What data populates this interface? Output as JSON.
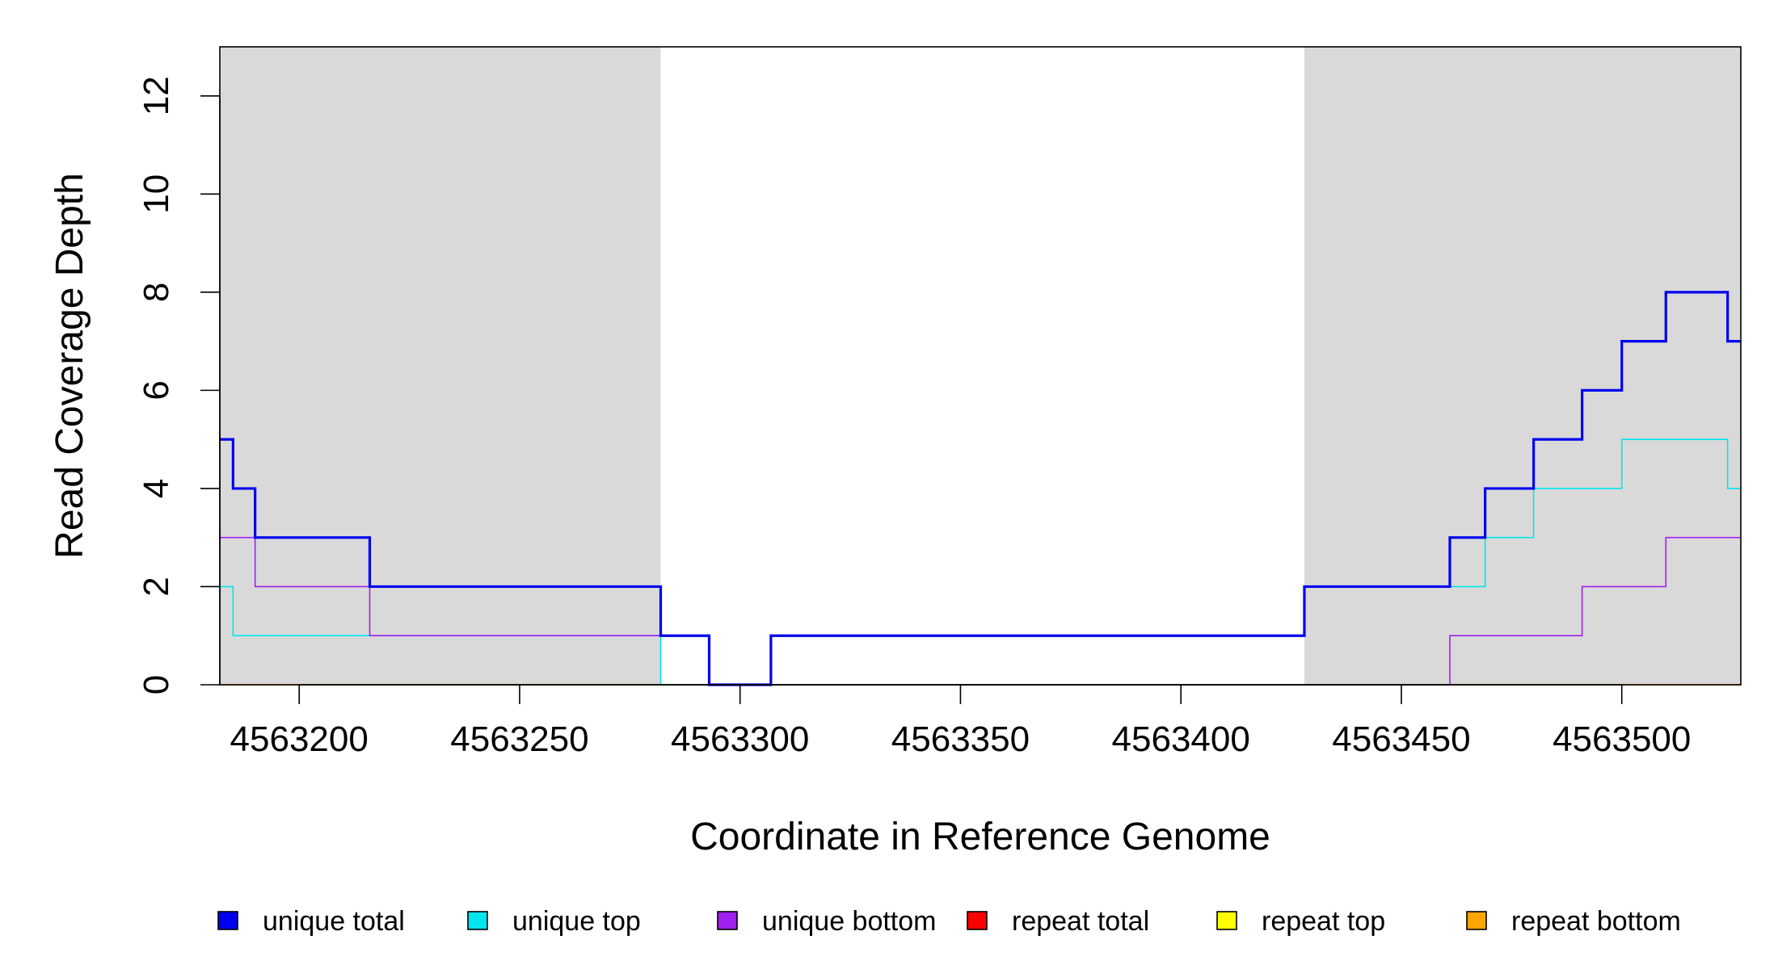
{
  "chart_data": {
    "type": "line",
    "step": true,
    "title": "",
    "xlabel": "Coordinate in Reference Genome",
    "ylabel": "Read Coverage Depth",
    "xlim": [
      4563182,
      4563527
    ],
    "ylim": [
      0,
      13
    ],
    "x_ticks": [
      4563200,
      4563250,
      4563300,
      4563350,
      4563400,
      4563450,
      4563500
    ],
    "x_tick_labels": [
      "4563200",
      "4563250",
      "4563300",
      "4563350",
      "4563400",
      "4563450",
      "4563500"
    ],
    "y_ticks": [
      0,
      2,
      4,
      6,
      8,
      10,
      12
    ],
    "y_tick_labels": [
      "0",
      "2",
      "4",
      "6",
      "8",
      "10",
      "12"
    ],
    "grid": false,
    "legend_position": "bottom",
    "shaded_regions": [
      {
        "from": 4563182,
        "to": 4563282,
        "color": "#d9d9d9"
      },
      {
        "from": 4563428,
        "to": 4563527,
        "color": "#d9d9d9"
      }
    ],
    "series": [
      {
        "name": "unique total",
        "color": "#0000ee",
        "width": "thick",
        "steps": [
          [
            4563182,
            5
          ],
          [
            4563185,
            4
          ],
          [
            4563190,
            3
          ],
          [
            4563216,
            2
          ],
          [
            4563282,
            1
          ],
          [
            4563293,
            0
          ],
          [
            4563307,
            1
          ],
          [
            4563428,
            2
          ],
          [
            4563461,
            3
          ],
          [
            4563469,
            4
          ],
          [
            4563480,
            5
          ],
          [
            4563491,
            6
          ],
          [
            4563500,
            7
          ],
          [
            4563510,
            8
          ],
          [
            4563524,
            7
          ],
          [
            4563527,
            7
          ]
        ]
      },
      {
        "name": "unique top",
        "color": "#00e5ee",
        "width": "thin",
        "steps": [
          [
            4563182,
            2
          ],
          [
            4563185,
            1
          ],
          [
            4563282,
            0
          ],
          [
            4563307,
            1
          ],
          [
            4563428,
            2
          ],
          [
            4563469,
            3
          ],
          [
            4563480,
            4
          ],
          [
            4563500,
            5
          ],
          [
            4563524,
            4
          ],
          [
            4563527,
            4
          ]
        ]
      },
      {
        "name": "unique bottom",
        "color": "#a020f0",
        "width": "thin",
        "steps": [
          [
            4563182,
            3
          ],
          [
            4563190,
            2
          ],
          [
            4563216,
            1
          ],
          [
            4563293,
            0
          ],
          [
            4563461,
            1
          ],
          [
            4563491,
            2
          ],
          [
            4563510,
            3
          ],
          [
            4563527,
            3
          ]
        ]
      },
      {
        "name": "repeat total",
        "color": "#ff0000",
        "width": "thin",
        "steps": [
          [
            4563182,
            0
          ],
          [
            4563527,
            0
          ]
        ]
      },
      {
        "name": "repeat top",
        "color": "#ffff00",
        "width": "thin",
        "steps": [
          [
            4563182,
            0
          ],
          [
            4563527,
            0
          ]
        ]
      },
      {
        "name": "repeat bottom",
        "color": "#ffa500",
        "width": "thin",
        "steps": [
          [
            4563182,
            0
          ],
          [
            4563527,
            0
          ]
        ]
      }
    ]
  }
}
